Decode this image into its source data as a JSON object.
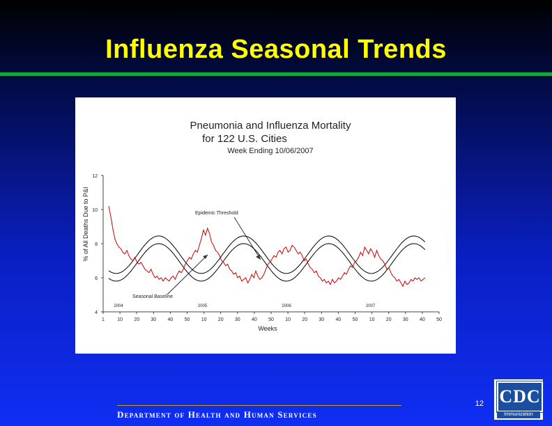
{
  "slide": {
    "title": "Influenza Seasonal Trends",
    "page_number": "12",
    "footer": "Department of Health and Human Services",
    "logo": {
      "text": "CDC",
      "subtext": "Immunization"
    },
    "colors": {
      "title": "#ffff00",
      "rule": "#0fa93b",
      "background_top": "#000000",
      "background_bottom": "#0f2ef2"
    }
  },
  "chart_data": {
    "type": "line",
    "title": "Pneumonia and Influenza Mortality",
    "title_line2": "for 122 U.S. Cities",
    "subtitle": "Week Ending 10/06/2007",
    "ylabel": "% of All Deaths Due to P&I",
    "xlabel": "Weeks",
    "ylim": [
      4,
      12
    ],
    "yticks": [
      "4",
      "6",
      "8",
      "10",
      "12"
    ],
    "xticks": [
      "1",
      "10",
      "20",
      "30",
      "40",
      "50",
      "10",
      "20",
      "30",
      "40",
      "50",
      "10",
      "20",
      "30",
      "40",
      "50",
      "10",
      "20",
      "30",
      "40",
      "50"
    ],
    "year_labels": [
      "2004",
      "2005",
      "2006",
      "2007"
    ],
    "annotations": {
      "threshold": "Epidemic Threshold",
      "baseline": "Seasonal Baseline"
    },
    "colors": {
      "observed": "#cc0000",
      "curves": "#000000"
    },
    "series": [
      {
        "name": "Observed",
        "values": [
          10.2,
          9.6,
          8.9,
          8.3,
          8.0,
          7.8,
          7.7,
          7.5,
          7.4,
          7.6,
          7.3,
          7.1,
          7.0,
          7.2,
          6.9,
          6.8,
          6.9,
          6.7,
          6.5,
          6.4,
          6.3,
          6.5,
          6.2,
          6.0,
          6.1,
          5.9,
          6.0,
          5.8,
          6.0,
          5.9,
          5.8,
          6.0,
          6.1,
          5.9,
          6.2,
          6.4,
          6.3,
          6.5,
          6.8,
          7.0,
          7.2,
          7.1,
          7.4,
          7.6,
          7.5,
          7.9,
          8.3,
          8.8,
          8.5,
          8.9,
          8.6,
          8.1,
          7.9,
          7.6,
          7.5,
          7.3,
          7.0,
          6.9,
          6.7,
          6.8,
          6.5,
          6.4,
          6.2,
          6.3,
          6.0,
          6.1,
          5.8,
          5.9,
          6.0,
          5.7,
          5.9,
          6.2,
          6.0,
          6.4,
          6.1,
          5.9,
          6.0,
          6.2,
          6.5,
          6.8,
          6.9,
          7.1,
          7.3,
          7.2,
          7.5,
          7.6,
          7.4,
          7.7,
          7.8,
          7.5,
          7.6,
          7.9,
          7.8,
          7.6,
          7.4,
          7.5,
          7.3,
          7.0,
          7.1,
          6.8,
          6.6,
          6.5,
          6.3,
          6.4,
          6.1,
          6.0,
          5.8,
          5.9,
          5.7,
          5.8,
          5.6,
          5.9,
          5.7,
          5.8,
          6.0,
          5.9,
          6.1,
          6.3,
          6.2,
          6.5,
          6.7,
          6.6,
          6.9,
          7.0,
          7.2,
          7.5,
          7.3,
          7.8,
          7.6,
          7.4,
          7.7,
          7.5,
          7.2,
          7.6,
          7.3,
          7.1,
          7.0,
          6.8,
          6.5,
          6.6,
          6.3,
          6.1,
          6.0,
          5.8,
          5.9,
          5.7,
          5.5,
          5.8,
          5.6,
          5.7,
          5.9,
          5.8,
          6.0,
          5.9,
          6.0,
          5.8,
          5.9,
          6.0
        ]
      },
      {
        "name": "Epidemic Threshold"
      },
      {
        "name": "Seasonal Baseline"
      }
    ]
  }
}
